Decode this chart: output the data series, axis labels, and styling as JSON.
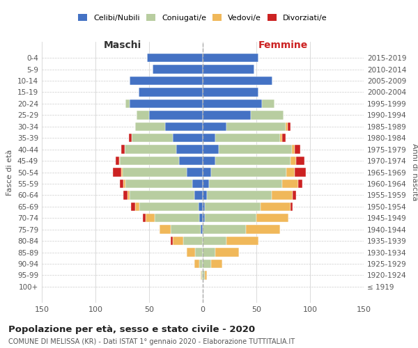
{
  "age_groups": [
    "100+",
    "95-99",
    "90-94",
    "85-89",
    "80-84",
    "75-79",
    "70-74",
    "65-69",
    "60-64",
    "55-59",
    "50-54",
    "45-49",
    "40-44",
    "35-39",
    "30-34",
    "25-29",
    "20-24",
    "15-19",
    "10-14",
    "5-9",
    "0-4"
  ],
  "birth_years": [
    "≤ 1919",
    "1920-1924",
    "1925-1929",
    "1930-1934",
    "1935-1939",
    "1940-1944",
    "1945-1949",
    "1950-1954",
    "1955-1959",
    "1960-1964",
    "1965-1969",
    "1970-1974",
    "1975-1979",
    "1980-1984",
    "1985-1989",
    "1990-1994",
    "1995-1999",
    "2000-2004",
    "2005-2009",
    "2010-2014",
    "2015-2019"
  ],
  "colors": {
    "celibe": "#4472c4",
    "coniugato": "#b8cda0",
    "vedovo": "#f0b85a",
    "divorziato": "#cc2222"
  },
  "males": {
    "celibe": [
      0,
      0,
      0,
      0,
      0,
      2,
      3,
      4,
      8,
      10,
      15,
      22,
      25,
      28,
      35,
      50,
      68,
      60,
      68,
      47,
      52
    ],
    "coniugato": [
      0,
      1,
      3,
      7,
      18,
      28,
      42,
      55,
      60,
      62,
      60,
      55,
      48,
      38,
      28,
      12,
      4,
      0,
      0,
      0,
      0
    ],
    "vedovo": [
      0,
      1,
      5,
      8,
      10,
      10,
      8,
      4,
      2,
      2,
      1,
      1,
      0,
      0,
      0,
      0,
      0,
      0,
      0,
      0,
      0
    ],
    "divorziato": [
      0,
      0,
      0,
      0,
      2,
      0,
      3,
      4,
      4,
      3,
      8,
      3,
      3,
      3,
      0,
      0,
      0,
      0,
      0,
      0,
      0
    ]
  },
  "females": {
    "nubile": [
      0,
      0,
      0,
      0,
      0,
      0,
      2,
      2,
      4,
      6,
      8,
      12,
      15,
      12,
      22,
      45,
      55,
      52,
      65,
      48,
      52
    ],
    "coniugata": [
      0,
      2,
      8,
      12,
      22,
      40,
      48,
      52,
      60,
      68,
      70,
      70,
      68,
      60,
      55,
      30,
      12,
      0,
      0,
      0,
      0
    ],
    "vedova": [
      0,
      2,
      10,
      22,
      30,
      32,
      30,
      28,
      20,
      15,
      8,
      5,
      3,
      2,
      2,
      0,
      0,
      0,
      0,
      0,
      0
    ],
    "divorziata": [
      0,
      0,
      0,
      0,
      0,
      0,
      0,
      2,
      3,
      4,
      10,
      8,
      5,
      3,
      3,
      0,
      0,
      0,
      0,
      0,
      0
    ]
  },
  "xlim": 150,
  "title": "Popolazione per età, sesso e stato civile - 2020",
  "subtitle": "COMUNE DI MELISSA (KR) - Dati ISTAT 1° gennaio 2020 - Elaborazione TUTTITALIA.IT",
  "ylabel_left": "Fasce di età",
  "ylabel_right": "Anni di nascita",
  "xlabel_left": "Maschi",
  "xlabel_right": "Femmine"
}
